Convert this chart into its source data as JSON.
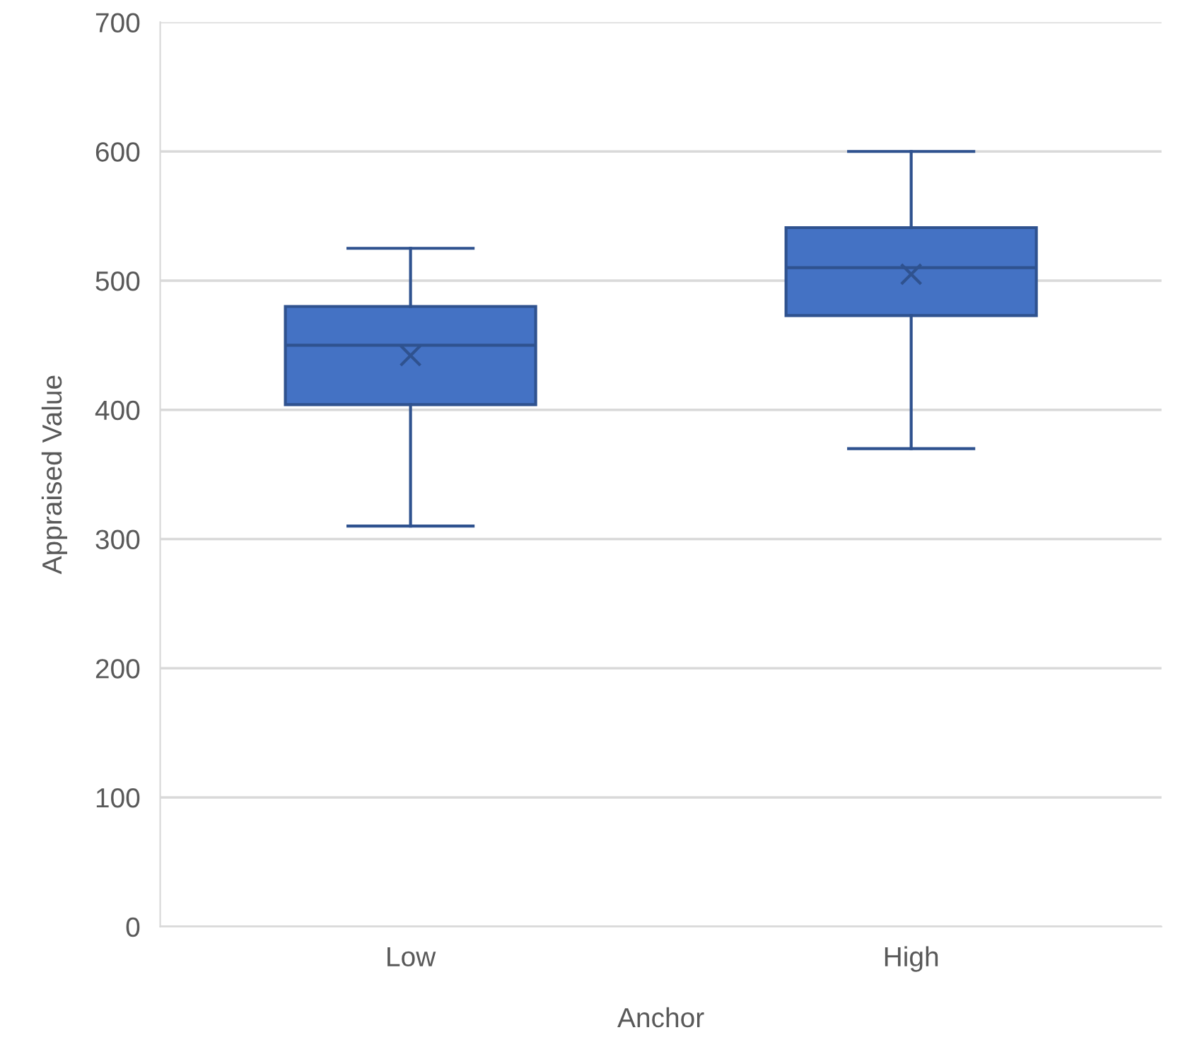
{
  "chart_data": {
    "type": "box",
    "xlabel": "Anchor",
    "ylabel": "Appraised Value",
    "categories": [
      "Low",
      "High"
    ],
    "boxes": [
      {
        "low": 310,
        "q1": 404,
        "median": 450,
        "q3": 480,
        "high": 525,
        "mean": 442
      },
      {
        "low": 370,
        "q1": 473,
        "median": 510,
        "q3": 541,
        "high": 600,
        "mean": 505
      }
    ],
    "color": "#4472c4",
    "ylim": [
      0,
      700
    ],
    "yticks": [
      0,
      100,
      200,
      300,
      400,
      500,
      600,
      700
    ],
    "grid": "y",
    "legend": false
  }
}
